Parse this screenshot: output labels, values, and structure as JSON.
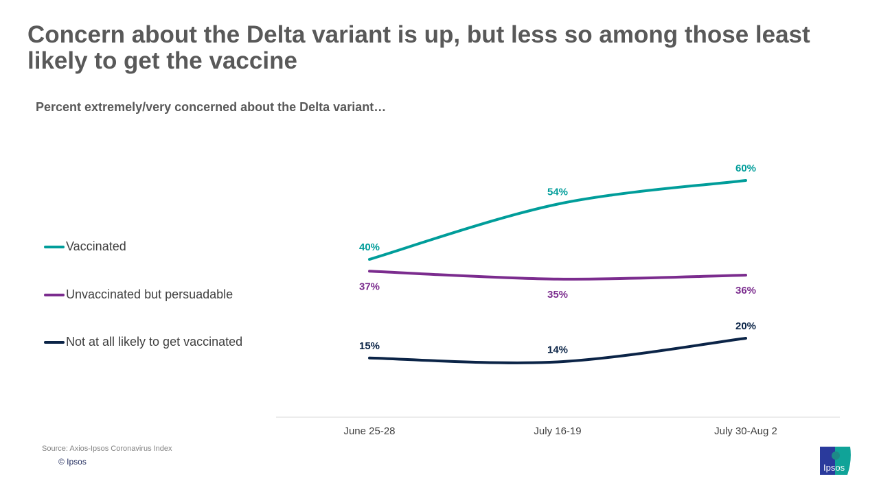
{
  "title": "Concern about the Delta variant is up, but less so among those least likely to get the vaccine",
  "subtitle": "Percent extremely/very concerned about the Delta variant…",
  "footer": {
    "source": "Source: Axios-Ipsos Coronavirus Index",
    "copyright": "© Ipsos",
    "logo_text": "Ipsos"
  },
  "chart_data": {
    "type": "line",
    "categories": [
      "June 25-28",
      "July 16-19",
      "July 30-Aug 2"
    ],
    "ylim": [
      0,
      70
    ],
    "grid": false,
    "legend_placement": "left",
    "series": [
      {
        "name": "Vaccinated",
        "values": [
          40,
          54,
          60
        ],
        "labels": [
          "40%",
          "54%",
          "60%"
        ],
        "color": "#009d9a",
        "label_pos": "above"
      },
      {
        "name": "Unvaccinated but persuadable",
        "values": [
          37,
          35,
          36
        ],
        "labels": [
          "37%",
          "35%",
          "36%"
        ],
        "color": "#7b2c8e",
        "label_pos": "below"
      },
      {
        "name": "Not at all likely to get vaccinated",
        "values": [
          15,
          14,
          20
        ],
        "labels": [
          "15%",
          "14%",
          "20%"
        ],
        "color": "#0b2447",
        "label_pos": "above"
      }
    ]
  }
}
